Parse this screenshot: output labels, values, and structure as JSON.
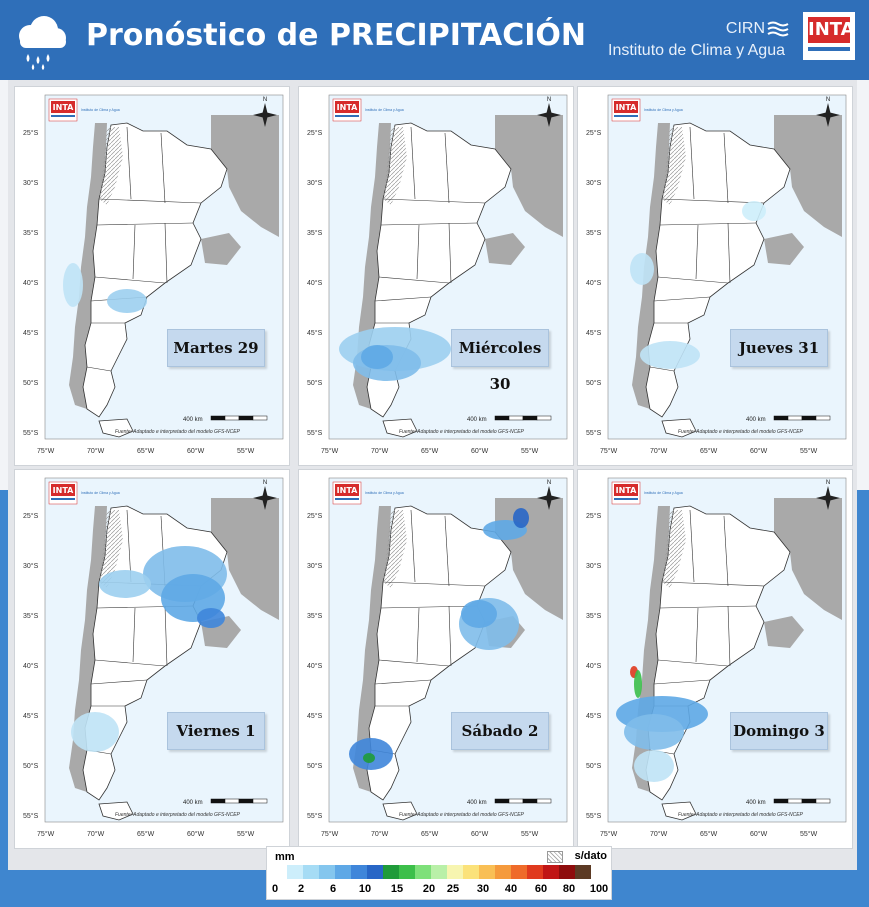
{
  "header": {
    "title": "Pronóstico de PRECIPITACIÓN",
    "cirn": "CIRN",
    "institute": "Instituto de Clima y Agua",
    "logo_text": "INTA"
  },
  "map_common": {
    "source_note": "Fuente: Adaptado e interpretado del modelo GFS-NCEP",
    "scale_label": "400 km",
    "lat_labels": [
      "25°S",
      "30°S",
      "35°S",
      "40°S",
      "45°S",
      "50°S",
      "55°S"
    ],
    "lon_labels": [
      "75°W",
      "70°W",
      "65°W",
      "60°W",
      "55°W"
    ],
    "north": "N",
    "mini_logo": "INTA",
    "mini_inst": "Instituto de Clima y Agua"
  },
  "panels": [
    {
      "day": "Martes 29"
    },
    {
      "day": "Miércoles 30"
    },
    {
      "day": "Jueves 31"
    },
    {
      "day": "Viernes 1"
    },
    {
      "day": "Sábado 2"
    },
    {
      "day": "Domingo 3"
    }
  ],
  "legend": {
    "unit": "mm",
    "no_data": "s/dato",
    "colors": [
      "#cdeefb",
      "#a6dcf5",
      "#84c6ee",
      "#5ea8e6",
      "#3f86da",
      "#2866c6",
      "#1f9b3a",
      "#3cbf4a",
      "#7ee07a",
      "#b9f0a8",
      "#f7f5b0",
      "#fbe27a",
      "#f9bf55",
      "#f59a3c",
      "#ef6b2a",
      "#e03a1e",
      "#c01515",
      "#8e0c0c",
      "#5c3a24"
    ],
    "tick_labels": [
      "0",
      "2",
      "6",
      "10",
      "15",
      "20",
      "25",
      "30",
      "40",
      "60",
      "80",
      "100"
    ]
  }
}
